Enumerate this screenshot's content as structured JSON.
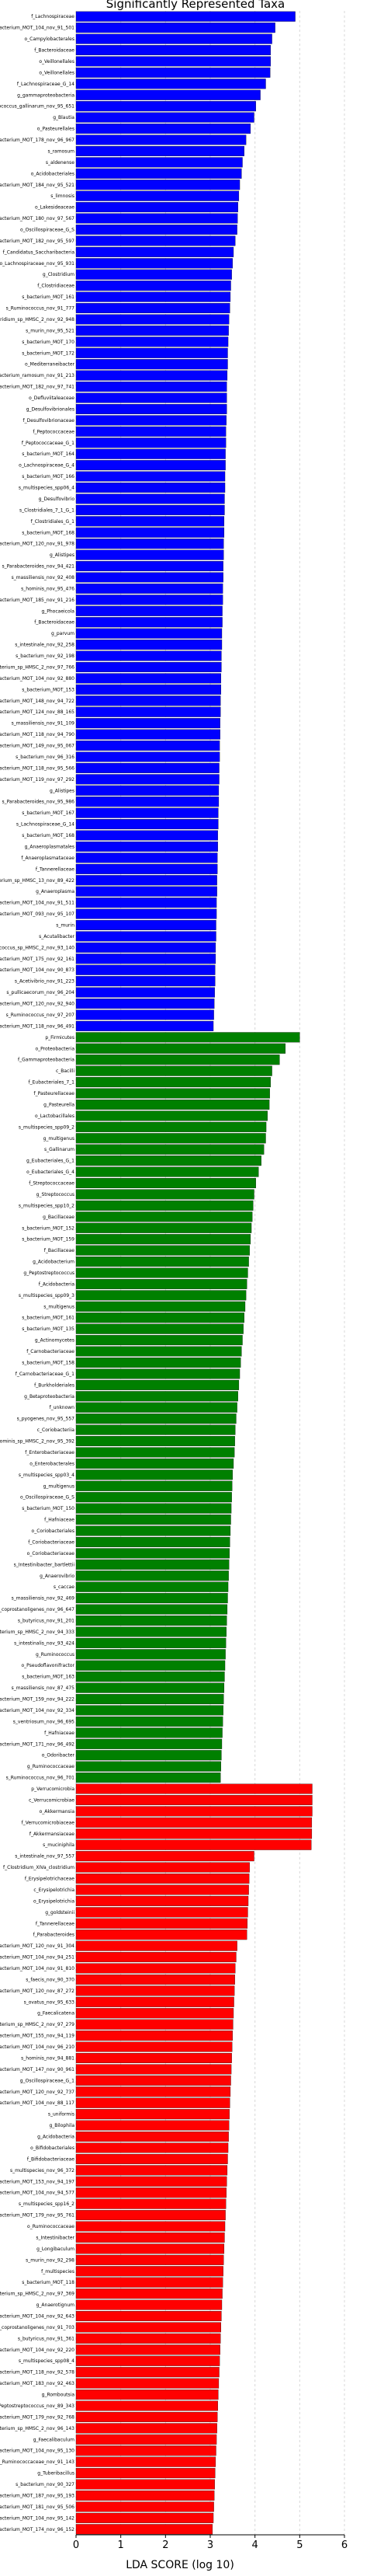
{
  "chart_data": {
    "type": "bar",
    "orientation": "horizontal",
    "title": "Significantly Represented Taxa",
    "xlabel": "LDA SCORE (log 10)",
    "xlim": [
      0,
      6
    ],
    "xticks": [
      0,
      1,
      2,
      3,
      4,
      5,
      6
    ],
    "grid": true,
    "series": [
      {
        "color": "#0000ff",
        "categories": [
          "f_Lachnospiraceae",
          "s_uncultured_bacterium_MOT_104_nov_91_501",
          "o_Campylobacterales",
          "f_Bacteroidaceae",
          "o_Veillonellales",
          "o_Veillonellales",
          "f_Lachnospiraceae_G_14",
          "g_gammaproteobacteria",
          "s_Enterococcus_gallinarum_nov_95_651",
          "g_Blautia",
          "o_Pasteurellales",
          "s_bacterium_MOT_178_nov_96_967",
          "s_ramosum",
          "s_aldenense",
          "o_Acidobacteriales",
          "s_bacterium_MOT_184_nov_95_521",
          "s_limnosis",
          "o_Lakesideaceae",
          "s_bacterium_MOT_180_nov_97_567",
          "o_Oscillospiraceae_G_S",
          "s_bacterium_MOT_182_nov_95_597",
          "f_Candidatus_Saccharibacteria",
          "o_Lachnospiraceae_nov_95_931",
          "g_Clostridium",
          "f_Clostridiaceae",
          "s_bacterium_MOT_161",
          "s_Ruminococcus_nov_91_777",
          "s_Clostridium_sp_HMSC_2_nov_92_948",
          "s_murin_nov_95_521",
          "s_bacterium_MOT_170",
          "s_bacterium_MOT_172",
          "o_Mediterraneibacter",
          "s_Eubacterium_ramosum_nov_91_213",
          "s_bacterium_MOT_182_nov_97_741",
          "o_Defluviitaleaceae",
          "g_Desulfovibrionales",
          "f_Desulfovibrionaceae",
          "f_Peptococcaceae",
          "f_Peptococcaceae_G_1",
          "s_bacterium_MOT_164",
          "o_Lachnospiraceae_G_4",
          "s_bacterium_MOT_166",
          "s_multispecies_spp06_4",
          "g_Desulfovibrio",
          "s_Clostridiales_7_1_G_1",
          "f_Clostridiales_G_1",
          "s_bacterium_MOT_168",
          "s_bacterium_MOT_120_nov_91_978",
          "g_Alistipes",
          "s_Parabacteroides_nov_94_421",
          "s_massiliensis_nov_92_408",
          "s_hominis_nov_95_476",
          "s_bacterium_MOT_185_nov_91_216",
          "g_Phocaeicola",
          "f_Bacteroidaceae",
          "g_parvum",
          "s_intestinale_nov_92_258",
          "s_bacterium_nov_92_198",
          "s_bacterium_sp_HMSC_2_nov_97_766",
          "s_bacterium_MOT_104_nov_92_880",
          "s_bacterium_MOT_153",
          "s_bacterium_MOT_148_nov_94_722",
          "s_bacterium_MOT_124_nov_88_165",
          "s_massiliensis_nov_91_109",
          "s_bacterium_MOT_118_nov_94_790",
          "s_bacterium_MOT_149_nov_95_067",
          "s_bacterium_nov_96_316",
          "s_bacterium_MOT_118_nov_95_566",
          "s_bacterium_MOT_119_nov_97_292",
          "g_Alistipes",
          "s_Parabacteroides_nov_95_986",
          "s_bacterium_MOT_167",
          "s_Lachnospiraceae_G_14",
          "s_bacterium_MOT_168",
          "g_Anaeroplasmatales",
          "f_Anaeroplasmataceae",
          "f_Tannerellaceae",
          "s_bacterium_sp_HMSC_13_nov_89_422",
          "g_Anaeroplasma",
          "s_bacterium_MOT_104_nov_91_511",
          "s_bacterium_MOT_093_nov_95_107",
          "s_murin",
          "s_Acutalibacter",
          "s_Ruminococcus_sp_HMSC_2_nov_93_140",
          "s_bacterium_MOT_175_nov_92_161",
          "s_bacterium_MOT_104_nov_90_873",
          "s_Acetivibrio_nov_91_223",
          "s_pullicaecorum_nov_96_204",
          "s_bacterium_MOT_120_nov_92_940",
          "s_Ruminococcus_nov_97_207",
          "s_bacterium_MOT_118_nov_96_491"
        ],
        "values": [
          4.9,
          4.45,
          4.38,
          4.35,
          4.35,
          4.34,
          4.24,
          4.12,
          4.02,
          3.98,
          3.9,
          3.8,
          3.76,
          3.72,
          3.7,
          3.66,
          3.64,
          3.62,
          3.61,
          3.6,
          3.56,
          3.52,
          3.5,
          3.48,
          3.46,
          3.45,
          3.44,
          3.42,
          3.41,
          3.4,
          3.39,
          3.39,
          3.38,
          3.37,
          3.37,
          3.37,
          3.36,
          3.35,
          3.35,
          3.34,
          3.34,
          3.33,
          3.33,
          3.32,
          3.32,
          3.31,
          3.31,
          3.3,
          3.3,
          3.29,
          3.29,
          3.28,
          3.28,
          3.27,
          3.27,
          3.26,
          3.26,
          3.25,
          3.25,
          3.24,
          3.24,
          3.23,
          3.23,
          3.22,
          3.22,
          3.21,
          3.21,
          3.2,
          3.2,
          3.19,
          3.19,
          3.18,
          3.18,
          3.17,
          3.17,
          3.16,
          3.16,
          3.15,
          3.15,
          3.14,
          3.14,
          3.13,
          3.13,
          3.12,
          3.12,
          3.11,
          3.11,
          3.1,
          3.09,
          3.08,
          3.07
        ]
      },
      {
        "color": "#008000",
        "categories": [
          "p_Firmicutes",
          "o_Proteobacteria",
          "f_Gammaproteobacteria",
          "c_Bacilli",
          "f_Eubacteriales_7_1",
          "f_Pasteurellaceae",
          "g_Pasteurella",
          "o_Lactobacillales",
          "s_multispecies_spp09_2",
          "g_multigenus",
          "s_Gallinarum",
          "g_Eubacteriales_G_1",
          "o_Eubacteriales_G_4",
          "f_Streptococcaceae",
          "g_Streptococcus",
          "s_multispecies_spp10_2",
          "g_Bacillaceae",
          "s_bacterium_MOT_152",
          "s_bacterium_MOT_159",
          "f_Bacillaceae",
          "g_Acidobacterium",
          "g_Peptostreptococcus",
          "f_Acidobacteria",
          "s_multispecies_spp09_3",
          "s_multigenus",
          "s_bacterium_MOT_161",
          "s_bacterium_MOT_135",
          "g_Actinomycetes",
          "f_Carnobacteriaceae",
          "s_bacterium_MOT_158",
          "f_Carnobacteriaceae_G_1",
          "f_Burkholderiales",
          "g_Betaproteobacteria",
          "f_unknown",
          "s_pyogenes_nov_95_557",
          "c_Coriobacteriia",
          "s_hominis_sp_HMSC_2_nov_95_392",
          "f_Enterobacteriaceae",
          "o_Enterobacterales",
          "s_multispecies_spp03_4",
          "g_multigenus",
          "o_Oscillospiraceae_G_S",
          "s_bacterium_MOT_150",
          "f_Hafniaceae",
          "o_Coriobacteriales",
          "f_Coriobacteriaceae",
          "o_Coriobacteriaceae",
          "s_Intestinibacter_bartlettii",
          "g_Anaerovibrio",
          "s_caccae",
          "s_massiliensis_nov_92_469",
          "s_Eubacterium_coprostanoligenes_nov_96_647",
          "s_butyricus_nov_91_201",
          "s_Eubacterium_sp_HMSC_2_nov_94_333",
          "s_intestinalis_nov_93_424",
          "g_Ruminococcus",
          "o_Pseudoflavonifractor",
          "s_bacterium_MOT_163",
          "s_massiliensis_nov_87_475",
          "s_bacterium_MOT_159_nov_94_222",
          "s_bacterium_MOT_104_nov_92_334",
          "s_ventriosum_nov_96_695",
          "f_Hafniaceae",
          "s_bacterium_MOT_171_nov_96_492",
          "o_Odoribacter",
          "g_Ruminococcaceae",
          "s_Ruminococcus_nov_96_701"
        ],
        "values": [
          5.0,
          4.68,
          4.55,
          4.38,
          4.35,
          4.33,
          4.32,
          4.28,
          4.25,
          4.24,
          4.2,
          4.14,
          4.08,
          4.02,
          3.98,
          3.96,
          3.94,
          3.92,
          3.9,
          3.88,
          3.86,
          3.84,
          3.82,
          3.8,
          3.78,
          3.76,
          3.74,
          3.72,
          3.7,
          3.68,
          3.66,
          3.64,
          3.62,
          3.6,
          3.58,
          3.56,
          3.55,
          3.54,
          3.52,
          3.5,
          3.49,
          3.48,
          3.47,
          3.46,
          3.45,
          3.44,
          3.43,
          3.42,
          3.41,
          3.4,
          3.39,
          3.38,
          3.37,
          3.36,
          3.35,
          3.34,
          3.33,
          3.32,
          3.31,
          3.3,
          3.29,
          3.28,
          3.27,
          3.26,
          3.25,
          3.24,
          3.23
        ]
      },
      {
        "color": "#ff0000",
        "categories": [
          "p_Verrucomicrobia",
          "c_Verrucomicrobiae",
          "o_Akkermansia",
          "f_Verrucomicrobiaceae",
          "f_Akkermansiaceae",
          "s_muciniphila",
          "s_intestinale_nov_97_557",
          "f_Clostridium_XIVa_clostridium",
          "f_Erysipelotrichaceae",
          "c_Erysipelotrichia",
          "o_Erysipelotrichia",
          "g_goldsteinii",
          "f_Tannerellaceae",
          "f_Parabacteroides",
          "s_bacterium_MOT_120_nov_91_304",
          "s_bacterium_MOT_104_nov_94_251",
          "s_bacterium_MOT_104_nov_91_810",
          "s_faecis_nov_90_370",
          "s_bacterium_MOT_120_nov_87_272",
          "s_ovatus_nov_95_633",
          "g_Faecalicatena",
          "s_bacterium_sp_HMSC_2_nov_97_279",
          "s_bacterium_MOT_155_nov_94_119",
          "s_bacterium_MOT_104_nov_96_210",
          "s_hominis_nov_94_881",
          "s_bacterium_MOT_147_nov_90_961",
          "g_Oscillospiraceae_G_1",
          "s_bacterium_MOT_120_nov_92_737",
          "s_bacterium_MOT_104_nov_88_117",
          "s_uniformis",
          "g_Bilophila",
          "g_Acidobacteria",
          "o_Bifidobacteriales",
          "f_Bifidobacteriaceae",
          "s_multispecies_nov_96_372",
          "s_bacterium_MOT_153_nov_94_197",
          "s_bacterium_MOT_104_nov_94_577",
          "s_multispecies_spp16_2",
          "s_bacterium_MOT_179_nov_95_761",
          "o_Ruminococcaceae",
          "s_Intestinibacter",
          "g_Longibaculum",
          "s_murin_nov_92_298",
          "f_multispecies",
          "s_bacterium_MOT_118",
          "s_bacterium_sp_HMSC_2_nov_97_369",
          "g_Anaerotignum",
          "s_bacterium_MOT_104_nov_92_643",
          "s_Eubacterium_coprostanoligenes_nov_91_703",
          "s_butyricus_nov_91_361",
          "s_bacterium_MOT_104_nov_92_220",
          "s_multispecies_spp08_4",
          "s_bacterium_MOT_118_nov_92_578",
          "s_bacterium_MOT_183_nov_92_463",
          "g_Romboutsia",
          "s_Peptostreptococcus_nov_89_343",
          "s_bacterium_MOT_179_nov_92_768",
          "s_Eubacterium_sp_HMSC_2_nov_96_143",
          "g_Faecalibaculum",
          "s_bacterium_MOT_104_nov_95_130",
          "s_Ruminococcaceae_nov_91_143",
          "g_Tuberibacillus",
          "s_bacterium_nov_90_327",
          "s_bacterium_MOT_187_nov_95_193",
          "s_bacterium_MOT_181_nov_95_506",
          "s_bacterium_MOT_104_nov_95_142",
          "s_bacterium_MOT_174_nov_96_152"
        ],
        "values": [
          5.28,
          5.28,
          5.28,
          5.27,
          5.27,
          5.26,
          3.98,
          3.88,
          3.87,
          3.86,
          3.85,
          3.84,
          3.83,
          3.82,
          3.6,
          3.58,
          3.56,
          3.55,
          3.54,
          3.53,
          3.52,
          3.51,
          3.5,
          3.49,
          3.48,
          3.47,
          3.46,
          3.45,
          3.44,
          3.43,
          3.42,
          3.41,
          3.4,
          3.39,
          3.38,
          3.37,
          3.36,
          3.35,
          3.34,
          3.33,
          3.32,
          3.31,
          3.3,
          3.29,
          3.28,
          3.27,
          3.26,
          3.25,
          3.24,
          3.23,
          3.22,
          3.21,
          3.2,
          3.19,
          3.18,
          3.17,
          3.16,
          3.15,
          3.14,
          3.13,
          3.12,
          3.11,
          3.1,
          3.09,
          3.08,
          3.07,
          3.05
        ]
      }
    ]
  }
}
